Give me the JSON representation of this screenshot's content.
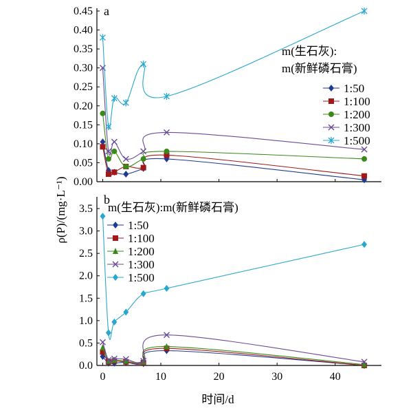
{
  "chart_data": [
    {
      "type": "line",
      "panel": "a",
      "xlabel": "",
      "ylabel": "ρ(P)/(mg·L⁻¹)",
      "xlim": [
        -1,
        47
      ],
      "ylim": [
        0,
        0.45
      ],
      "yticks": [
        "0.00",
        "0.05",
        "0.10",
        "0.15",
        "0.20",
        "0.25",
        "0.30",
        "0.35",
        "0.40",
        "0.45"
      ],
      "legend_title_line1": "m(生石灰):",
      "legend_title_line2": "m(新鲜磷石膏)",
      "legend_position": "right",
      "series": [
        {
          "name": "1:50",
          "color": "#1f3a93",
          "marker": "diamond",
          "points": [
            [
              0,
              0.105
            ],
            [
              1,
              0.03
            ],
            [
              2,
              0.025
            ],
            [
              4,
              0.02
            ],
            [
              7,
              0.035
            ],
            [
              11,
              0.06
            ],
            [
              45,
              0.005
            ]
          ]
        },
        {
          "name": "1:100",
          "color": "#a01818",
          "marker": "square",
          "points": [
            [
              0,
              0.092
            ],
            [
              1,
              0.02
            ],
            [
              2,
              0.025
            ],
            [
              4,
              0.04
            ],
            [
              7,
              0.037
            ],
            [
              11,
              0.07
            ],
            [
              45,
              0.015
            ]
          ]
        },
        {
          "name": "1:200",
          "color": "#3a8a1a",
          "marker": "circle",
          "points": [
            [
              0,
              0.18
            ],
            [
              1,
              0.06
            ],
            [
              2,
              0.08
            ],
            [
              4,
              0.04
            ],
            [
              7,
              0.06
            ],
            [
              11,
              0.08
            ],
            [
              45,
              0.06
            ]
          ]
        },
        {
          "name": "1:300",
          "color": "#6a4a9a",
          "marker": "x",
          "points": [
            [
              0,
              0.3
            ],
            [
              1,
              0.08
            ],
            [
              2,
              0.105
            ],
            [
              4,
              0.06
            ],
            [
              7,
              0.08
            ],
            [
              11,
              0.13
            ],
            [
              45,
              0.085
            ]
          ]
        },
        {
          "name": "1:500",
          "color": "#29a8cf",
          "marker": "star",
          "points": [
            [
              0,
              0.38
            ],
            [
              1,
              0.145
            ],
            [
              2,
              0.22
            ],
            [
              4,
              0.208
            ],
            [
              7,
              0.31
            ],
            [
              11,
              0.225
            ],
            [
              45,
              0.45
            ]
          ]
        }
      ]
    },
    {
      "type": "line",
      "panel": "b",
      "xlabel": "时间/d",
      "ylabel": "ρ(P)/(mg·L⁻¹)",
      "xlim": [
        -1,
        47
      ],
      "ylim": [
        0,
        3.7
      ],
      "xticks": [
        "0",
        "10",
        "20",
        "30",
        "40"
      ],
      "yticks": [
        "0.0",
        "0.5",
        "1.0",
        "1.5",
        "2.0",
        "2.5",
        "3.0",
        "3.5"
      ],
      "legend_title": "m(生石灰):m(新鲜磷石膏)",
      "legend_position": "top-left",
      "series": [
        {
          "name": "1:50",
          "color": "#1f3a93",
          "marker": "diamond",
          "points": [
            [
              0,
              0.2
            ],
            [
              1,
              0.05
            ],
            [
              2,
              0.05
            ],
            [
              4,
              0.07
            ],
            [
              7,
              0.04
            ],
            [
              11,
              0.33
            ],
            [
              45,
              0.0
            ]
          ]
        },
        {
          "name": "1:100",
          "color": "#a01818",
          "marker": "square",
          "points": [
            [
              0,
              0.3
            ],
            [
              1,
              0.08
            ],
            [
              2,
              0.1
            ],
            [
              4,
              0.08
            ],
            [
              7,
              0.06
            ],
            [
              11,
              0.38
            ],
            [
              45,
              0.0
            ]
          ]
        },
        {
          "name": "1:200",
          "color": "#3a8a1a",
          "marker": "triangle",
          "points": [
            [
              0,
              0.4
            ],
            [
              1,
              0.1
            ],
            [
              2,
              0.12
            ],
            [
              4,
              0.1
            ],
            [
              7,
              0.08
            ],
            [
              11,
              0.42
            ],
            [
              45,
              0.02
            ]
          ]
        },
        {
          "name": "1:300",
          "color": "#6a4a9a",
          "marker": "x",
          "points": [
            [
              0,
              0.52
            ],
            [
              1,
              0.12
            ],
            [
              2,
              0.15
            ],
            [
              4,
              0.14
            ],
            [
              7,
              0.1
            ],
            [
              11,
              0.68
            ],
            [
              45,
              0.08
            ]
          ]
        },
        {
          "name": "1:500",
          "color": "#29a8cf",
          "marker": "diamond",
          "points": [
            [
              0,
              3.33
            ],
            [
              1,
              0.73
            ],
            [
              2,
              0.97
            ],
            [
              4,
              1.19
            ],
            [
              7,
              1.6
            ],
            [
              11,
              1.72
            ],
            [
              45,
              2.7
            ]
          ]
        }
      ]
    }
  ]
}
